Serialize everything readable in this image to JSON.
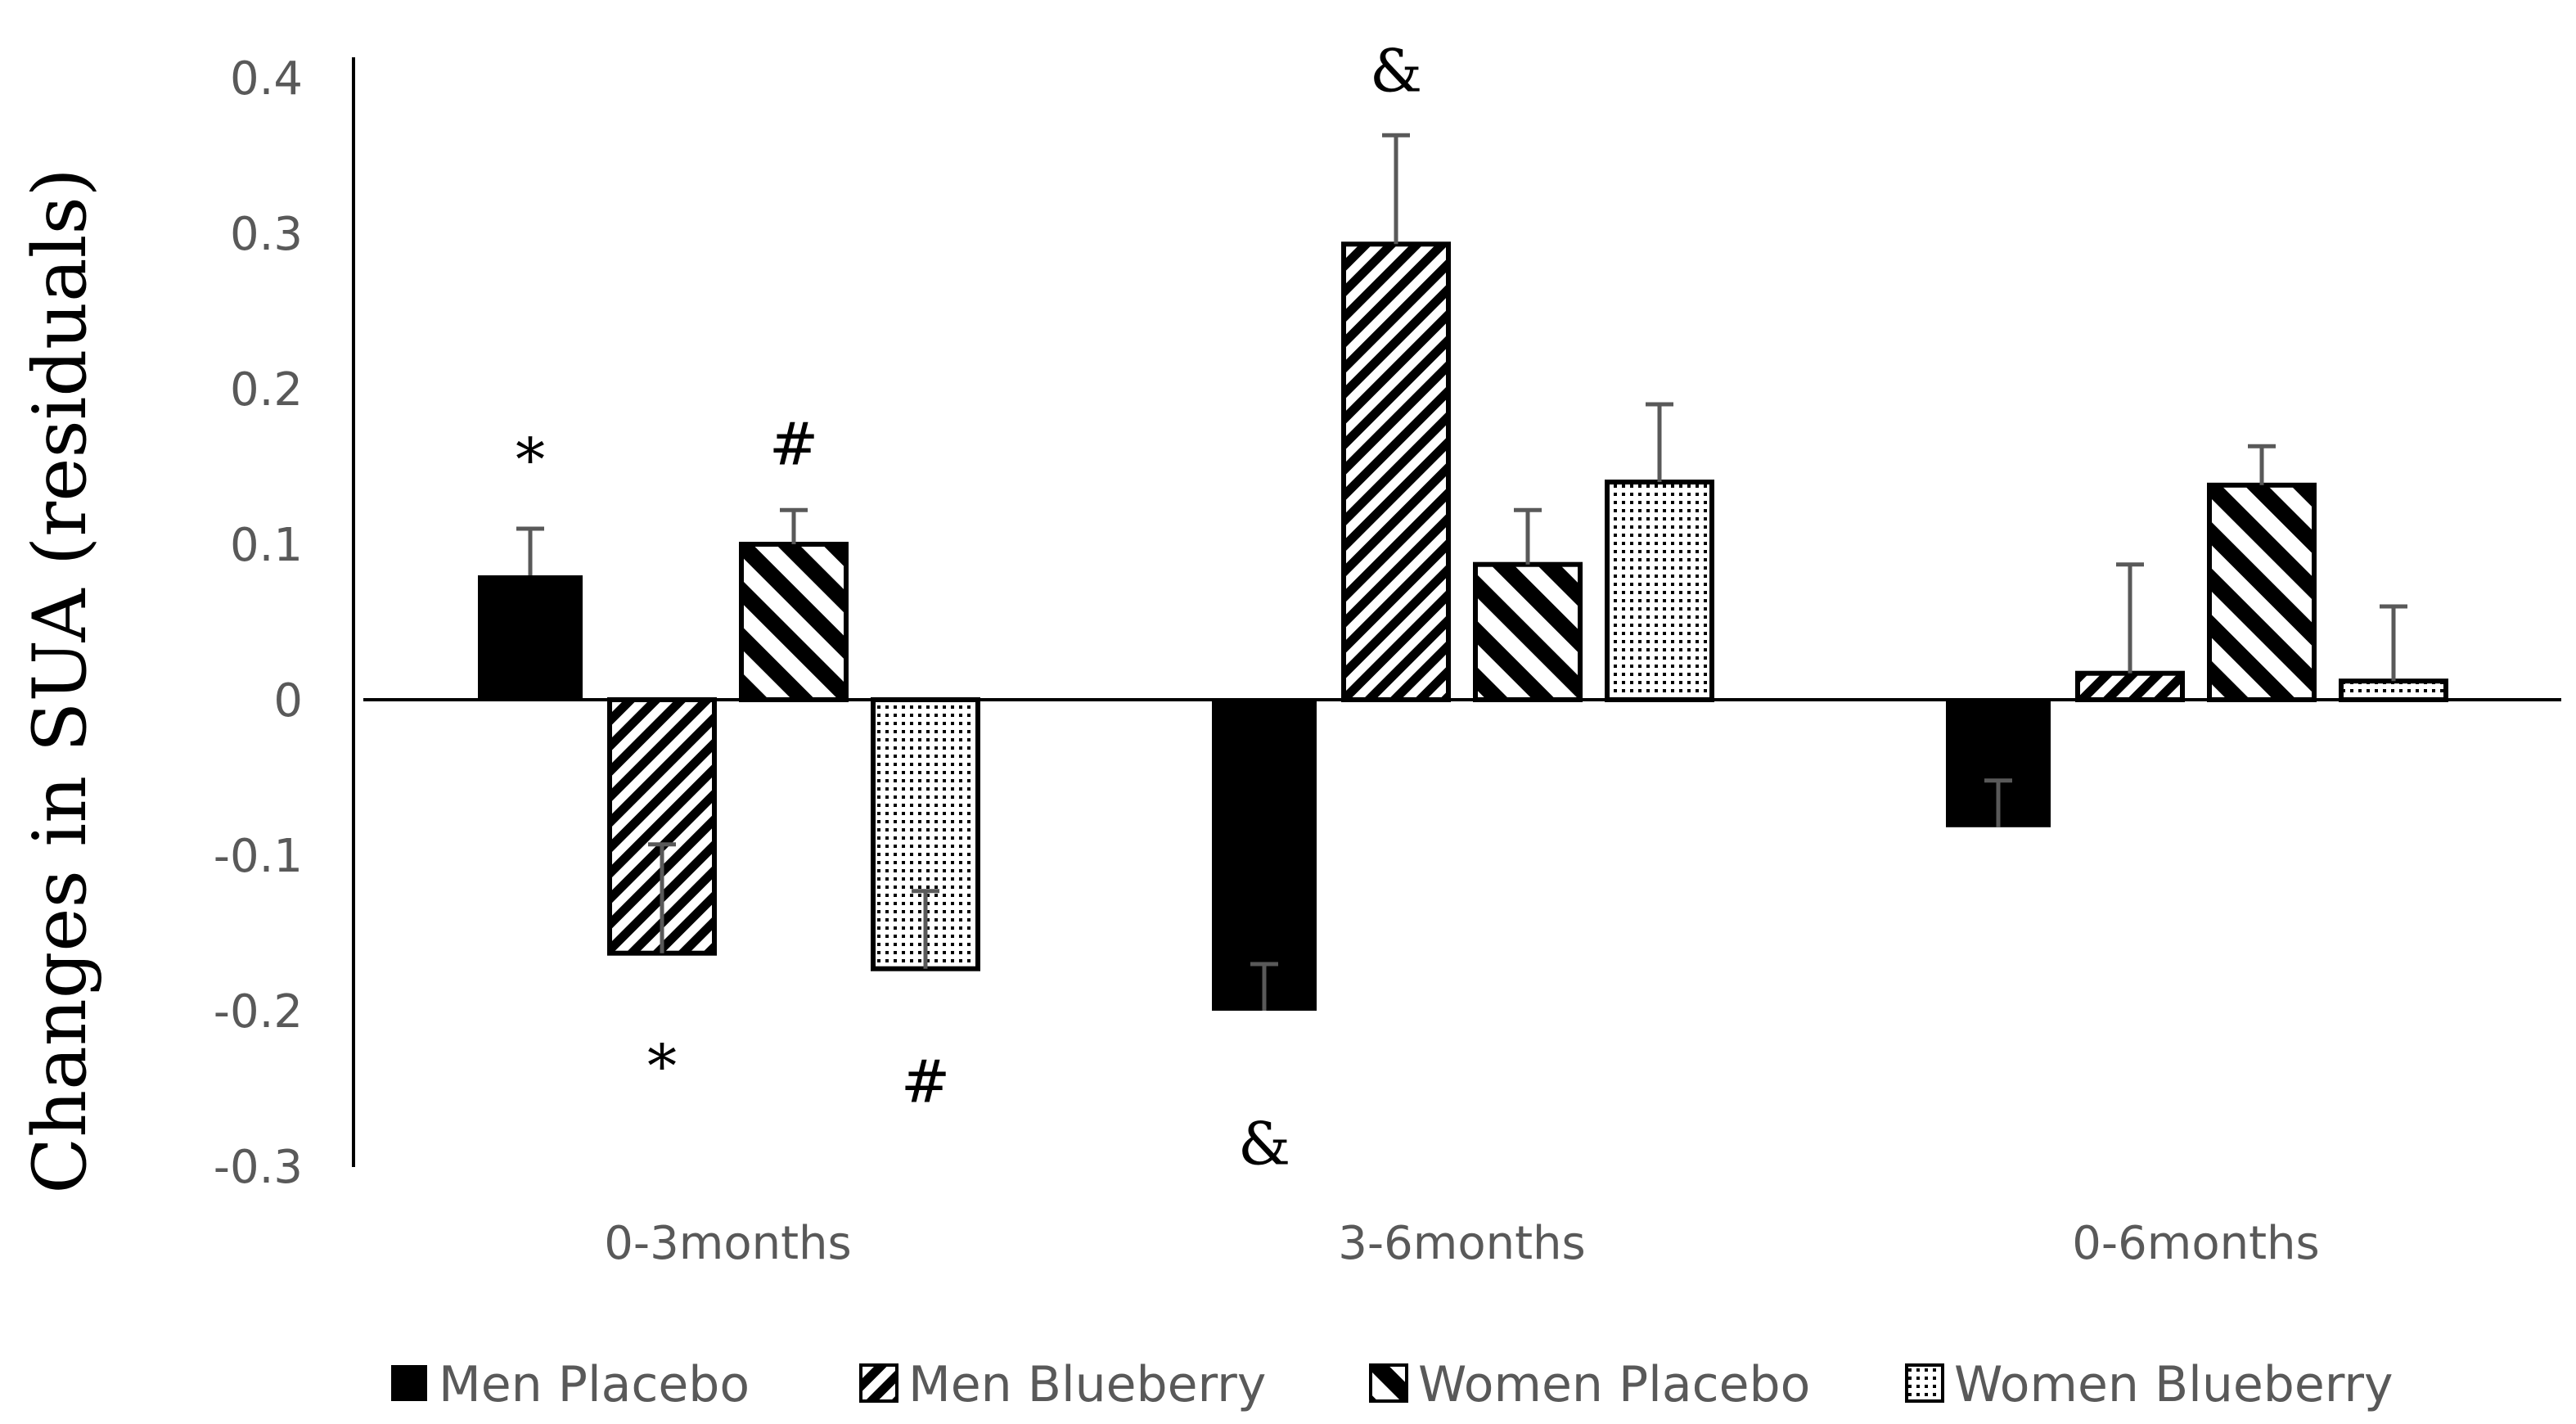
{
  "chart_data": {
    "type": "bar",
    "title": "",
    "xlabel": "",
    "ylabel": "Changes in SUA (residuals)",
    "ylim": [
      -0.3,
      0.4
    ],
    "yticks": [
      0.4,
      0.3,
      0.2,
      0.1,
      0,
      -0.1,
      -0.2,
      -0.3
    ],
    "ytick_labels": [
      "0.4",
      "0.3",
      "0.2",
      "0.1",
      "0",
      "-0.1",
      "-0.2",
      "-0.3"
    ],
    "grid": false,
    "legend_position": "bottom",
    "categories": [
      "0-3months",
      "3-6months",
      "0-6months"
    ],
    "series": [
      {
        "name": "Men Placebo",
        "pattern": "solid",
        "values": [
          0.08,
          -0.2,
          -0.082
        ],
        "errors": [
          0.03,
          0.03,
          0.03
        ]
      },
      {
        "name": "Men Blueberry",
        "pattern": "diag-fwd",
        "values": [
          -0.163,
          0.293,
          0.017
        ],
        "errors": [
          0.07,
          0.07,
          0.07
        ]
      },
      {
        "name": "Women Placebo",
        "pattern": "diag-back",
        "values": [
          0.1,
          0.087,
          0.138
        ],
        "errors": [
          0.022,
          0.035,
          0.025
        ]
      },
      {
        "name": "Women Blueberry",
        "pattern": "dots",
        "values": [
          -0.173,
          0.14,
          0.012
        ],
        "errors": [
          0.05,
          0.05,
          0.048
        ]
      }
    ],
    "annotations": [
      {
        "text": "*",
        "category": 0,
        "series": 0,
        "y": 0.155
      },
      {
        "text": "*",
        "category": 0,
        "series": 1,
        "y": -0.235
      },
      {
        "text": "#",
        "category": 0,
        "series": 2,
        "y": 0.165
      },
      {
        "text": "#",
        "category": 0,
        "series": 3,
        "y": -0.245
      },
      {
        "text": "&",
        "category": 1,
        "series": 1,
        "y": 0.405
      },
      {
        "text": "&",
        "category": 1,
        "series": 0,
        "y": -0.285
      }
    ]
  },
  "colors": {
    "axis": "#000000",
    "tick_text": "#595959",
    "error_bar": "#595959",
    "bar_fill": "#000000",
    "background": "#ffffff"
  }
}
